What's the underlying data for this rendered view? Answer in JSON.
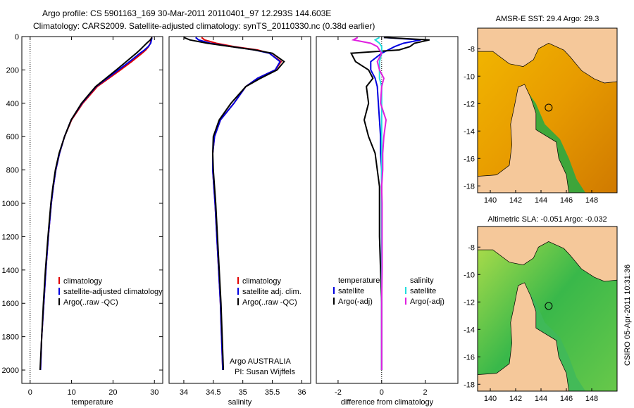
{
  "header": {
    "line1": "Argo profile: CS 5901163_169 30-Mar-2011 20110401_97 12.293S 144.603E",
    "line2": "Climatology: CARS2009. Satellite-adjusted climatology: synTS_20110330.nc (0.38d earlier)"
  },
  "stamp": "CSIRO 05-Apr-2011 10:31:36",
  "colors": {
    "clim": "#e00000",
    "sat": "#0000e0",
    "argo": "#000000",
    "sal_sat": "#22dddd",
    "sal_argo": "#e020e0",
    "land": "#f5c89a",
    "frame": "#000000"
  },
  "chart_data": [
    {
      "type": "line",
      "name": "temperature-profile",
      "xlabel": "temperature",
      "ylabel": "",
      "xlim": [
        -2,
        32
      ],
      "ylim": [
        2080,
        0
      ],
      "xticks": [
        0,
        10,
        20,
        30
      ],
      "yticks": [
        0,
        200,
        400,
        600,
        800,
        1000,
        1200,
        1400,
        1600,
        1800,
        2000
      ],
      "legend": [
        "climatology",
        "satellite-adjusted climatology",
        "Argo(..raw -QC)"
      ],
      "depth": [
        5,
        20,
        40,
        60,
        80,
        100,
        150,
        200,
        250,
        300,
        400,
        500,
        600,
        700,
        800,
        900,
        1000,
        1200,
        1400,
        1600,
        1800,
        2000
      ],
      "series": [
        {
          "name": "climatology",
          "values": [
            29.3,
            29.2,
            29.0,
            28.6,
            27.9,
            27.0,
            24.5,
            21.8,
            19.0,
            16.2,
            12.7,
            10.0,
            8.3,
            7.1,
            6.2,
            5.6,
            5.1,
            4.4,
            3.8,
            3.3,
            2.8,
            2.5
          ]
        },
        {
          "name": "satellite-adjusted climatology",
          "values": [
            29.4,
            29.3,
            29.1,
            28.5,
            27.6,
            26.5,
            24.0,
            21.3,
            18.6,
            15.9,
            12.5,
            9.9,
            8.3,
            7.1,
            6.2,
            5.6,
            5.1,
            4.4,
            3.8,
            3.3,
            2.8,
            2.5
          ]
        },
        {
          "name": "Argo(..raw -QC)",
          "values": [
            29.4,
            29.0,
            28.1,
            27.3,
            26.5,
            25.6,
            23.2,
            20.8,
            18.3,
            15.8,
            12.4,
            9.9,
            8.3,
            7.0,
            6.1,
            5.5,
            5.0,
            4.3,
            3.7,
            3.2,
            2.8,
            2.4
          ]
        }
      ]
    },
    {
      "type": "line",
      "name": "salinity-profile",
      "xlabel": "salinity",
      "ylabel": "",
      "xlim": [
        33.75,
        36.15
      ],
      "ylim": [
        2080,
        0
      ],
      "xticks": [
        34,
        34.5,
        35,
        35.5,
        36
      ],
      "yticks": [],
      "legend": [
        "climatology",
        "satellite adj. clim.",
        "Argo(..raw -QC)"
      ],
      "annotation": [
        "Argo AUSTRALIA",
        "PI: Susan Wijffels"
      ],
      "depth": [
        5,
        20,
        40,
        60,
        80,
        100,
        150,
        200,
        250,
        300,
        400,
        500,
        600,
        700,
        800,
        900,
        1000,
        1200,
        1400,
        1600,
        1800,
        2000
      ],
      "series": [
        {
          "name": "climatology",
          "values": [
            34.3,
            34.35,
            34.55,
            34.85,
            35.25,
            35.45,
            35.65,
            35.55,
            35.25,
            35.05,
            34.85,
            34.62,
            34.52,
            34.49,
            34.49,
            34.51,
            34.53,
            34.56,
            34.59,
            34.62,
            34.64,
            34.66
          ]
        },
        {
          "name": "satellite adj. clim.",
          "values": [
            34.2,
            34.25,
            34.45,
            34.8,
            35.2,
            35.45,
            35.63,
            35.55,
            35.25,
            35.05,
            34.85,
            34.62,
            34.52,
            34.49,
            34.49,
            34.51,
            34.53,
            34.56,
            34.59,
            34.62,
            34.64,
            34.66
          ]
        },
        {
          "name": "Argo(..raw -QC)",
          "values": [
            34.0,
            34.1,
            34.4,
            34.8,
            35.2,
            35.5,
            35.7,
            35.58,
            35.3,
            35.05,
            34.8,
            34.6,
            34.5,
            34.49,
            34.5,
            34.52,
            34.54,
            34.57,
            34.6,
            34.63,
            34.65,
            34.67
          ]
        }
      ]
    },
    {
      "type": "line",
      "name": "difference-profile",
      "xlabel": "difference from climatology",
      "ylabel": "",
      "xlim": [
        -3,
        3.5
      ],
      "ylim": [
        2080,
        0
      ],
      "xticks": [
        -2,
        0,
        2
      ],
      "yticks": [],
      "legend_temperature": [
        "temperature",
        "satellite",
        "Argo(-adj)"
      ],
      "legend_salinity": [
        "salinity",
        "satellite",
        "Argo(-adj)"
      ],
      "depth": [
        5,
        20,
        40,
        60,
        80,
        100,
        150,
        200,
        250,
        300,
        400,
        500,
        600,
        700,
        800,
        900,
        1000,
        1200,
        1400,
        1600,
        1800,
        2000
      ],
      "series": [
        {
          "name": "temperature satellite",
          "values": [
            0.1,
            1.8,
            1.0,
            0.6,
            0.3,
            0.0,
            -0.5,
            -0.5,
            -0.3,
            -0.2,
            -0.15,
            -0.1,
            -0.05,
            -0.05,
            0.0,
            0.0,
            0.0,
            0.0,
            0.0,
            0.0,
            0.0,
            0.0
          ]
        },
        {
          "name": "temperature Argo(-adj)",
          "values": [
            0.1,
            2.2,
            1.5,
            1.3,
            0.8,
            -1.4,
            -1.2,
            -0.6,
            -0.4,
            -0.7,
            -0.6,
            -0.8,
            -0.6,
            -0.3,
            -0.2,
            -0.1,
            -0.1,
            -0.1,
            -0.05,
            0.0,
            0.0,
            0.0
          ]
        },
        {
          "name": "salinity satellite",
          "values": [
            -0.1,
            -0.3,
            -0.1,
            0.0,
            0.0,
            0.0,
            -0.1,
            -0.1,
            -0.1,
            0.0,
            0.0,
            0.0,
            0.0,
            0.0,
            0.0,
            0.0,
            0.0,
            0.0,
            0.0,
            0.0,
            0.0,
            0.0
          ]
        },
        {
          "name": "salinity Argo(-adj)",
          "values": [
            -1.1,
            -1.3,
            -0.5,
            -0.2,
            -0.1,
            0.0,
            -0.2,
            -0.1,
            0.1,
            0.0,
            -0.05,
            0.2,
            0.1,
            0.05,
            0.05,
            0.0,
            0.02,
            0.02,
            0.02,
            0.0,
            0.0,
            0.0
          ]
        }
      ]
    },
    {
      "type": "heatmap",
      "name": "amse-sst-map",
      "title": "AMSR-E SST: 29.4 Argo: 29.3",
      "xlim": [
        139,
        150
      ],
      "ylim": [
        -18.5,
        -6.5
      ],
      "xticks": [
        140,
        142,
        144,
        146,
        148
      ],
      "yticks": [
        -8,
        -10,
        -12,
        -14,
        -16,
        -18
      ],
      "marker": {
        "lon": 144.603,
        "lat": -12.293
      }
    },
    {
      "type": "heatmap",
      "name": "altimetric-sla-map",
      "title": "Altimetric SLA: -0.051 Argo: -0.032",
      "xlim": [
        139,
        150
      ],
      "ylim": [
        -18.5,
        -6.5
      ],
      "xticks": [
        140,
        142,
        144,
        146,
        148
      ],
      "yticks": [
        -8,
        -10,
        -12,
        -14,
        -16,
        -18
      ],
      "marker": {
        "lon": 144.603,
        "lat": -12.293
      }
    }
  ]
}
